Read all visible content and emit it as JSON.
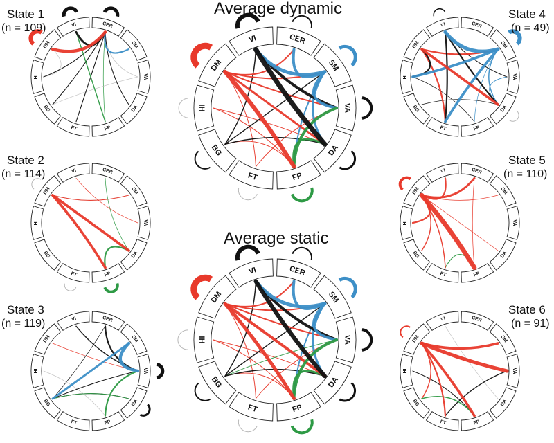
{
  "colors": {
    "black": "#111111",
    "red": "#e8392b",
    "blue": "#3d8fc7",
    "green": "#2e9a45",
    "grey": "#b8b8b8"
  },
  "titles": {
    "dynamic": "Average dynamic",
    "static": "Average static"
  },
  "states": [
    {
      "title": "State 1",
      "n": "(n = 109)"
    },
    {
      "title": "State 2",
      "n": "(n = 114)"
    },
    {
      "title": "State 3",
      "n": "(n = 119)"
    },
    {
      "title": "State 4",
      "n": "(n = 49)"
    },
    {
      "title": "State 5",
      "n": "(n = 110)"
    },
    {
      "title": "State 6",
      "n": "(n = 91)"
    }
  ],
  "networks": [
    "CER",
    "SM",
    "VA",
    "DA",
    "FP",
    "FT",
    "BG",
    "HI",
    "DM",
    "VI"
  ],
  "diagrams": [
    {
      "key": "avg_dynamic",
      "self": {
        "CER": [
          "black",
          2
        ],
        "SM": [
          "blue",
          5
        ],
        "VA": [
          "black",
          4
        ],
        "DA": [
          "black",
          3
        ],
        "FP": [
          "green",
          4
        ],
        "FT": [
          "grey",
          1
        ],
        "BG": [
          "black",
          2
        ],
        "HI": [
          "grey",
          1
        ],
        "DM": [
          "red",
          9
        ],
        "VI": [
          "black",
          6
        ]
      },
      "edges": [
        [
          "VI",
          "DA",
          "black",
          7
        ],
        [
          "VI",
          "VA",
          "black",
          4
        ],
        [
          "VI",
          "SM",
          "blue",
          5
        ],
        [
          "CER",
          "SM",
          "blue",
          4
        ],
        [
          "SM",
          "VA",
          "blue",
          4
        ],
        [
          "SM",
          "DA",
          "blue",
          3
        ],
        [
          "SM",
          "FP",
          "blue",
          2
        ],
        [
          "DM",
          "FP",
          "red",
          6
        ],
        [
          "DM",
          "DA",
          "red",
          3
        ],
        [
          "DM",
          "VA",
          "red",
          2
        ],
        [
          "DM",
          "SM",
          "red",
          2
        ],
        [
          "DM",
          "CER",
          "red",
          2
        ],
        [
          "VA",
          "FP",
          "green",
          4
        ],
        [
          "DA",
          "FP",
          "green",
          3
        ],
        [
          "VI",
          "BG",
          "black",
          1.5
        ],
        [
          "BG",
          "SM",
          "black",
          1.5
        ],
        [
          "BG",
          "DA",
          "black",
          1.5
        ],
        [
          "HI",
          "DA",
          "red",
          1
        ],
        [
          "FT",
          "VA",
          "red",
          1
        ],
        [
          "FT",
          "DM",
          "red",
          1
        ],
        [
          "BG",
          "FP",
          "red",
          1
        ],
        [
          "HI",
          "FP",
          "red",
          1
        ]
      ]
    },
    {
      "key": "avg_static",
      "self": {
        "CER": [
          "black",
          2
        ],
        "SM": [
          "blue",
          5
        ],
        "VA": [
          "black",
          4
        ],
        "DA": [
          "black",
          3
        ],
        "FP": [
          "green",
          4
        ],
        "FT": [
          "grey",
          1
        ],
        "BG": [
          "black",
          2
        ],
        "HI": [
          "grey",
          1
        ],
        "DM": [
          "red",
          9
        ],
        "VI": [
          "black",
          6
        ]
      },
      "edges": [
        [
          "VI",
          "DA",
          "black",
          6
        ],
        [
          "VI",
          "VA",
          "black",
          4
        ],
        [
          "VI",
          "SM",
          "blue",
          5
        ],
        [
          "CER",
          "SM",
          "blue",
          4
        ],
        [
          "SM",
          "VA",
          "blue",
          4
        ],
        [
          "SM",
          "DA",
          "blue",
          3
        ],
        [
          "SM",
          "FP",
          "blue",
          2
        ],
        [
          "DM",
          "FP",
          "red",
          5
        ],
        [
          "DM",
          "DA",
          "red",
          4
        ],
        [
          "DM",
          "VA",
          "red",
          2
        ],
        [
          "DM",
          "SM",
          "red",
          2
        ],
        [
          "DM",
          "CER",
          "red",
          2
        ],
        [
          "VA",
          "FP",
          "green",
          4
        ],
        [
          "DA",
          "FP",
          "green",
          3
        ],
        [
          "VI",
          "BG",
          "black",
          1.5
        ],
        [
          "BG",
          "SM",
          "black",
          1.5
        ],
        [
          "BG",
          "DA",
          "black",
          1.5
        ],
        [
          "HI",
          "DA",
          "red",
          1
        ],
        [
          "FT",
          "VA",
          "red",
          1
        ],
        [
          "FT",
          "DM",
          "red",
          1
        ],
        [
          "BG",
          "FP",
          "red",
          1
        ],
        [
          "HI",
          "FP",
          "red",
          1
        ],
        [
          "BG",
          "VA",
          "green",
          1
        ]
      ]
    },
    {
      "key": "state1",
      "self": {
        "CER": [
          "black",
          5
        ],
        "VI": [
          "black",
          5
        ],
        "DM": [
          "red",
          6
        ]
      },
      "edges": [
        [
          "CER",
          "SM",
          "blue",
          3
        ],
        [
          "CER",
          "VI",
          "black",
          4
        ],
        [
          "CER",
          "DM",
          "red",
          6
        ],
        [
          "CER",
          "HI",
          "black",
          1.5
        ],
        [
          "CER",
          "BG",
          "black",
          1.5
        ],
        [
          "CER",
          "FT",
          "black",
          1.5
        ],
        [
          "CER",
          "DA",
          "black",
          1.5
        ],
        [
          "VI",
          "FP",
          "green",
          2
        ],
        [
          "CER",
          "FP",
          "green",
          1
        ],
        [
          "CER",
          "VA",
          "grey",
          1
        ],
        [
          "HI",
          "DM",
          "grey",
          1
        ],
        [
          "BG",
          "VA",
          "grey",
          1
        ]
      ]
    },
    {
      "key": "state2",
      "self": {
        "FP": [
          "green",
          4
        ],
        "DM": [
          "grey",
          1
        ],
        "FT": [
          "grey",
          1
        ]
      },
      "edges": [
        [
          "DM",
          "DA",
          "red",
          5
        ],
        [
          "DM",
          "FP",
          "red",
          5
        ],
        [
          "DA",
          "FP",
          "green",
          3
        ],
        [
          "DM",
          "SM",
          "red",
          1.5
        ],
        [
          "CER",
          "DA",
          "green",
          1
        ],
        [
          "VI",
          "VA",
          "red",
          1
        ],
        [
          "SM",
          "DM",
          "grey",
          1
        ]
      ]
    },
    {
      "key": "state3",
      "self": {
        "VA": [
          "black",
          5
        ],
        "DA": [
          "black",
          3
        ]
      },
      "edges": [
        [
          "SM",
          "VA",
          "blue",
          6
        ],
        [
          "SM",
          "BG",
          "blue",
          4
        ],
        [
          "CER",
          "VA",
          "black",
          3
        ],
        [
          "VI",
          "VA",
          "black",
          2
        ],
        [
          "VA",
          "FP",
          "green",
          3
        ],
        [
          "VA",
          "BG",
          "black",
          1.5
        ],
        [
          "DA",
          "BG",
          "black",
          1.5
        ],
        [
          "BG",
          "DA",
          "green",
          1.5
        ],
        [
          "CER",
          "BG",
          "black",
          1
        ],
        [
          "DM",
          "VA",
          "red",
          1
        ],
        [
          "HI",
          "FP",
          "grey",
          1
        ]
      ]
    },
    {
      "key": "state4",
      "self": {
        "SM": [
          "blue",
          6
        ],
        "VI": [
          "black",
          1.5
        ],
        "DA": [
          "grey",
          1
        ]
      },
      "edges": [
        [
          "VI",
          "SM",
          "blue",
          7
        ],
        [
          "HI",
          "SM",
          "blue",
          5
        ],
        [
          "FT",
          "SM",
          "blue",
          5
        ],
        [
          "DM",
          "DA",
          "red",
          5
        ],
        [
          "DM",
          "SM",
          "red",
          3
        ],
        [
          "DM",
          "FT",
          "red",
          3
        ],
        [
          "VI",
          "DA",
          "black",
          3
        ],
        [
          "VI",
          "FT",
          "black",
          3
        ],
        [
          "DM",
          "HI",
          "black",
          3
        ],
        [
          "SM",
          "DA",
          "blue",
          2
        ],
        [
          "VA",
          "DA",
          "blue",
          1.5
        ],
        [
          "VI",
          "VA",
          "black",
          1.5
        ],
        [
          "HI",
          "FP",
          "black",
          1
        ],
        [
          "BG",
          "DA",
          "black",
          1
        ],
        [
          "SM",
          "FP",
          "blue",
          1
        ]
      ]
    },
    {
      "key": "state5",
      "self": {
        "DM": [
          "red",
          4
        ]
      },
      "edges": [
        [
          "DM",
          "FP",
          "red",
          9
        ],
        [
          "DM",
          "CER",
          "red",
          4
        ],
        [
          "DM",
          "VI",
          "red",
          3
        ],
        [
          "DM",
          "HI",
          "red",
          3
        ],
        [
          "DM",
          "BG",
          "red",
          2
        ],
        [
          "DM",
          "FT",
          "red",
          2
        ],
        [
          "DM",
          "SM",
          "red",
          1
        ],
        [
          "DM",
          "DA",
          "red",
          1
        ],
        [
          "FT",
          "FP",
          "green",
          1.5
        ],
        [
          "CER",
          "FP",
          "red",
          1
        ]
      ]
    },
    {
      "key": "state6",
      "self": {
        "DM": [
          "red",
          2
        ]
      },
      "edges": [
        [
          "DM",
          "VA",
          "red",
          7
        ],
        [
          "DM",
          "SM",
          "red",
          5
        ],
        [
          "DM",
          "FP",
          "red",
          5
        ],
        [
          "DM",
          "FT",
          "red",
          3
        ],
        [
          "DM",
          "BG",
          "red",
          2
        ],
        [
          "VA",
          "FT",
          "black",
          2
        ],
        [
          "HI",
          "FP",
          "black",
          1.5
        ],
        [
          "BG",
          "FP",
          "green",
          2
        ],
        [
          "VI",
          "DA",
          "grey",
          1
        ]
      ]
    }
  ]
}
